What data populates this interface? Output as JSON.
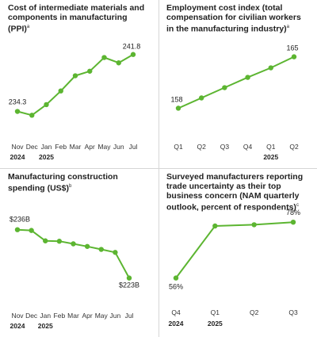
{
  "accent_color": "#5cb531",
  "chart_data": [
    {
      "type": "line",
      "title": "Cost of intermediate materials and components in manufacturing (PPI)",
      "title_note": "a",
      "categories": [
        "Nov",
        "Dec",
        "Jan",
        "Feb",
        "Mar",
        "Apr",
        "May",
        "Jun",
        "Jul"
      ],
      "years": [
        {
          "label": "2024",
          "at": 0
        },
        {
          "label": "2025",
          "at": 2
        }
      ],
      "values": [
        234.3,
        233.8,
        235.2,
        237.0,
        239.0,
        239.6,
        241.4,
        240.7,
        241.8
      ],
      "data_labels": [
        {
          "index": 0,
          "text": "234.3"
        },
        {
          "index": 8,
          "text": "241.8"
        }
      ],
      "ylim": [
        233.0,
        242.5
      ],
      "grid": false
    },
    {
      "type": "line",
      "title": "Employment cost index (total compensation for civilian workers in the manufacturing industry)",
      "title_note": "a",
      "categories": [
        "Q1",
        "Q2",
        "Q3",
        "Q4",
        "Q1",
        "Q2"
      ],
      "years": [
        {
          "label": "2025",
          "at": 4
        }
      ],
      "values": [
        158,
        159.4,
        160.8,
        162.2,
        163.5,
        165
      ],
      "data_labels": [
        {
          "index": 0,
          "text": "158"
        },
        {
          "index": 5,
          "text": "165"
        }
      ],
      "ylim": [
        156,
        165.5
      ],
      "grid": false
    },
    {
      "type": "line",
      "title": "Manufacturing construction spending (US$)",
      "title_note": "b",
      "categories": [
        "Nov",
        "Dec",
        "Jan",
        "Feb",
        "Mar",
        "Apr",
        "May",
        "Jun",
        "Jul"
      ],
      "years": [
        {
          "label": "2024",
          "at": 0
        },
        {
          "label": "2025",
          "at": 2
        }
      ],
      "values": [
        236,
        235.8,
        233,
        232.9,
        232.2,
        231.5,
        230.7,
        229.9,
        223
      ],
      "values_note": "billions of US$",
      "data_labels": [
        {
          "index": 0,
          "text": "$236B"
        },
        {
          "index": 8,
          "text": "$223B"
        }
      ],
      "ylim": [
        221,
        237
      ],
      "grid": false
    },
    {
      "type": "line",
      "title": "Surveyed manufacturers reporting trade uncertainty as their top business concern (NAM quarterly outlook, percent of respondents)",
      "title_note": "c",
      "categories": [
        "Q4",
        "Q1",
        "Q2",
        "Q3"
      ],
      "years": [
        {
          "label": "2024",
          "at": 0
        },
        {
          "label": "2025",
          "at": 1
        }
      ],
      "values": [
        56,
        76.5,
        77,
        78
      ],
      "data_labels": [
        {
          "index": 0,
          "text": "56%"
        },
        {
          "index": 3,
          "text": "78%"
        }
      ],
      "ylim": [
        54,
        79
      ],
      "grid": false
    }
  ]
}
